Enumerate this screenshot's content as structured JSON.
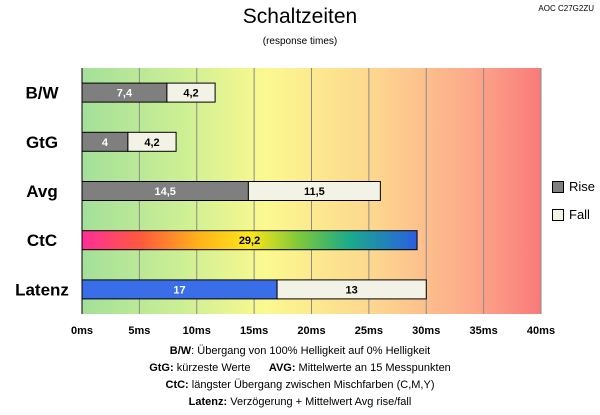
{
  "header": {
    "title": "Schaltzeiten",
    "subtitle": "(response times)",
    "tag": "AOC C27G2ZU"
  },
  "legend": {
    "rise_label": "Rise",
    "fall_label": "Fall",
    "rise_color": "#7f7f7f",
    "fall_color": "#f2f2e6"
  },
  "notes": {
    "line1_key": "B/W",
    "line1_text": ":  Übergang von 100% Helligkeit auf 0% Helligkeit",
    "line2_key_a": "GtG:",
    "line2_text_a": " kürzeste  Werte",
    "line2_key_b": "AVG:",
    "line2_text_b": " Mittelwerte  an 15 Messpunkten",
    "line3_key": "CtC:",
    "line3_text": " längster Übergang  zwischen Mischfarben (C,M,Y)",
    "line4_key": "Latenz:",
    "line4_text": " Verzögerung  + Mittelwert Avg rise/fall"
  },
  "chart_data": {
    "type": "bar",
    "orientation": "horizontal",
    "stacked": true,
    "title": "Schaltzeiten",
    "subtitle": "(response times)",
    "categories": [
      "B/W",
      "GtG",
      "Avg",
      "CtC",
      "Latenz"
    ],
    "bars": [
      {
        "category": "B/W",
        "segments": [
          {
            "series": "Rise",
            "value": 7.4,
            "label": "7,4",
            "fill": "#7f7f7f",
            "text_color": "#ffffff"
          },
          {
            "series": "Fall",
            "value": 4.2,
            "label": "4,2",
            "fill": "#f2f2e6",
            "text_color": "#000000"
          }
        ]
      },
      {
        "category": "GtG",
        "segments": [
          {
            "series": "Rise",
            "value": 4,
            "label": "4",
            "fill": "#7f7f7f",
            "text_color": "#ffffff"
          },
          {
            "series": "Fall",
            "value": 4.2,
            "label": "4,2",
            "fill": "#f2f2e6",
            "text_color": "#000000"
          }
        ]
      },
      {
        "category": "Avg",
        "segments": [
          {
            "series": "Rise",
            "value": 14.5,
            "label": "14,5",
            "fill": "#7f7f7f",
            "text_color": "#ffffff"
          },
          {
            "series": "Fall",
            "value": 11.5,
            "label": "11,5",
            "fill": "#f2f2e6",
            "text_color": "#000000"
          }
        ]
      },
      {
        "category": "CtC",
        "segments": [
          {
            "series": "CtC",
            "value": 29.2,
            "label": "29,2",
            "fill": "rainbow",
            "text_color": "#000000"
          }
        ]
      },
      {
        "category": "Latenz",
        "segments": [
          {
            "series": "Latenz",
            "value": 17,
            "label": "17",
            "fill": "#3a6ee8",
            "text_color": "#ffffff"
          },
          {
            "series": "Avg rise/fall",
            "value": 13,
            "label": "13",
            "fill": "#f2f2e6",
            "text_color": "#000000"
          }
        ]
      }
    ],
    "xlim": [
      0,
      40
    ],
    "xticks": [
      "0ms",
      "5ms",
      "10ms",
      "15ms",
      "20ms",
      "25ms",
      "30ms",
      "35ms",
      "40ms"
    ],
    "background": "gradient green to yellow to red",
    "grid": true,
    "legend_position": "right"
  }
}
